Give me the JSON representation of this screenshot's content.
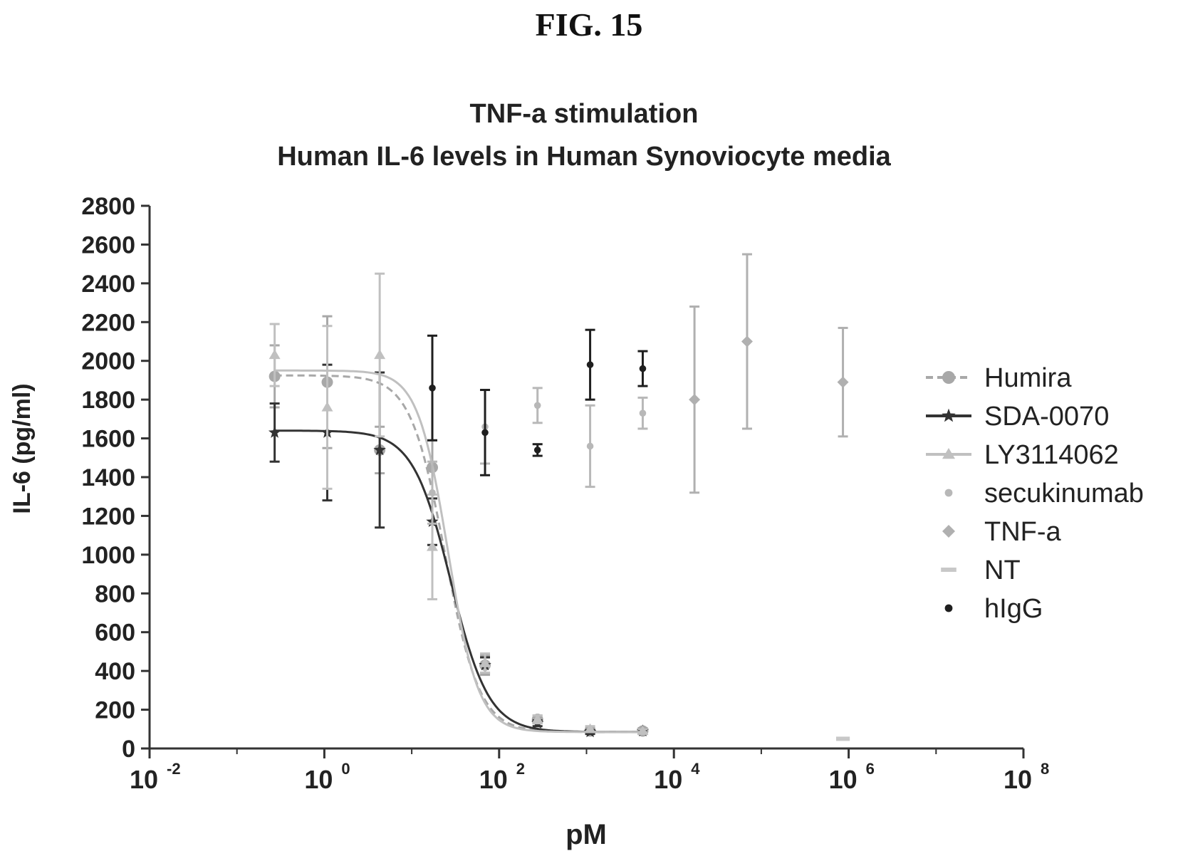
{
  "figure_label": "FIG. 15",
  "chart_data": {
    "type": "scatter",
    "title": "TNF-a stimulation",
    "subtitle": "Human IL-6 levels in Human Synoviocyte media",
    "xlabel": "pM",
    "ylabel": "IL-6 (pg/ml)",
    "x_scale": "log",
    "xlim": [
      0.01,
      100000000
    ],
    "ylim": [
      0,
      2800
    ],
    "x_ticks": [
      0.01,
      1,
      100,
      10000,
      1000000,
      100000000
    ],
    "x_tick_exponents": [
      "-2",
      "0",
      "2",
      "4",
      "6",
      "8"
    ],
    "y_ticks": [
      0,
      200,
      400,
      600,
      800,
      1000,
      1200,
      1400,
      1600,
      1800,
      2000,
      2200,
      2400,
      2600,
      2800
    ],
    "grid": false,
    "legend_position": "right",
    "series": [
      {
        "name": "Humira",
        "color": "#a8a8a8",
        "marker": "circle",
        "line": "dash",
        "x": [
          0.27,
          1.08,
          4.3,
          17.2,
          69,
          275,
          1100,
          4400
        ],
        "y": [
          1920,
          1890,
          1540,
          1450,
          430,
          150,
          90,
          90
        ],
        "err": [
          160,
          340,
          120,
          140,
          50,
          20,
          15,
          15
        ],
        "fit": {
          "top": 1925,
          "bottom": 85,
          "ec50": 24,
          "hill": 2.2
        }
      },
      {
        "name": "SDA-0070",
        "color": "#333333",
        "marker": "star",
        "line": "solid",
        "x": [
          0.27,
          1.08,
          4.3,
          17.2,
          69,
          275,
          1100,
          4400
        ],
        "y": [
          1630,
          1630,
          1540,
          1170,
          430,
          130,
          85,
          90
        ],
        "err": [
          150,
          350,
          400,
          120,
          40,
          15,
          10,
          10
        ],
        "fit": {
          "top": 1640,
          "bottom": 85,
          "ec50": 28,
          "hill": 2.0
        }
      },
      {
        "name": "LY3114062",
        "color": "#c0c0c0",
        "marker": "triangle",
        "line": "solid",
        "x": [
          0.27,
          1.08,
          4.3,
          17.2,
          69,
          275,
          1100,
          4400
        ],
        "y": [
          2030,
          1760,
          2030,
          1040,
          440,
          150,
          100,
          90
        ],
        "err": [
          160,
          420,
          420,
          270,
          50,
          20,
          15,
          10
        ],
        "fit": {
          "top": 1950,
          "bottom": 85,
          "ec50": 26,
          "hill": 2.5
        }
      },
      {
        "name": "secukinumab",
        "color": "#b8b8b8",
        "marker": "dot",
        "line": "none",
        "x": [
          17.2,
          69,
          275,
          1100,
          4400
        ],
        "y": [
          1320,
          1660,
          1770,
          1560,
          1730
        ],
        "err": [
          160,
          190,
          90,
          210,
          80
        ],
        "fit": null
      },
      {
        "name": "TNF-a",
        "color": "#b0b0b0",
        "marker": "diamond",
        "line": "none",
        "x": [
          17200,
          68800,
          860000
        ],
        "y": [
          1800,
          2100,
          1890
        ],
        "err": [
          480,
          450,
          280
        ],
        "fit": null
      },
      {
        "name": "NT",
        "color": "#c8c8c8",
        "marker": "dash",
        "line": "none",
        "x": [
          860000
        ],
        "y": [
          50
        ],
        "err": [
          0
        ],
        "fit": null
      },
      {
        "name": "hIgG",
        "color": "#1f1f1f",
        "marker": "dot",
        "line": "none",
        "x": [
          17.2,
          69,
          275,
          1100,
          4400
        ],
        "y": [
          1860,
          1630,
          1540,
          1980,
          1960
        ],
        "err": [
          270,
          220,
          30,
          180,
          90
        ],
        "fit": null
      }
    ]
  }
}
